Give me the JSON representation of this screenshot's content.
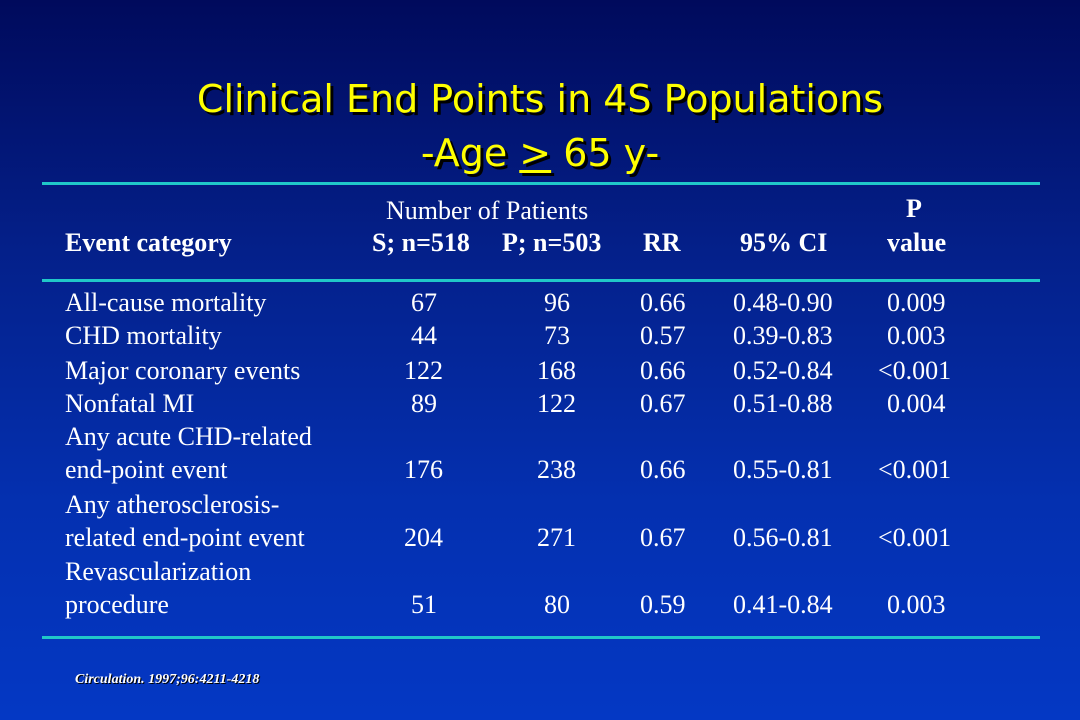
{
  "title": {
    "line1": "Clinical End Points in 4S Populations",
    "line2_prefix": "-Age ",
    "line2_symbol": ">",
    "line2_suffix": " 65 y-"
  },
  "table": {
    "group_header": "Number of Patients",
    "columns": [
      "Event category",
      "S; n=518",
      "P; n=503",
      "RR",
      "95% CI",
      "value"
    ],
    "p_header_top": "P",
    "rows": [
      {
        "event": [
          "All-cause mortality"
        ],
        "s": "67",
        "p": "96",
        "rr": "0.66",
        "ci": "0.48-0.90",
        "pval": "0.009"
      },
      {
        "event": [
          "CHD mortality"
        ],
        "s": "44",
        "p": "73",
        "rr": "0.57",
        "ci": "0.39-0.83",
        "pval": "0.003"
      },
      {
        "event": [
          "Major coronary events"
        ],
        "s": "122",
        "p": "168",
        "rr": "0.66",
        "ci": "0.52-0.84",
        "pval": "<0.001"
      },
      {
        "event": [
          "Nonfatal MI"
        ],
        "s": "89",
        "p": "122",
        "rr": "0.67",
        "ci": "0.51-0.88",
        "pval": "0.004"
      },
      {
        "event": [
          "Any acute CHD-related",
          "end-point event"
        ],
        "s": "176",
        "p": "238",
        "rr": "0.66",
        "ci": "0.55-0.81",
        "pval": "<0.001"
      },
      {
        "event": [
          "Any atherosclerosis-",
          "related end-point event"
        ],
        "s": "204",
        "p": "271",
        "rr": "0.67",
        "ci": "0.56-0.81",
        "pval": "<0.001"
      },
      {
        "event": [
          "Revascularization",
          "procedure"
        ],
        "s": "51",
        "p": "80",
        "rr": "0.59",
        "ci": "0.41-0.84",
        "pval": "0.003"
      }
    ]
  },
  "citation": "Circulation. 1997;96:4211-4218",
  "colors": {
    "title": "#ffff00",
    "rule": "#20c8c8",
    "text": "#ffffff",
    "background": "#0430b0"
  }
}
